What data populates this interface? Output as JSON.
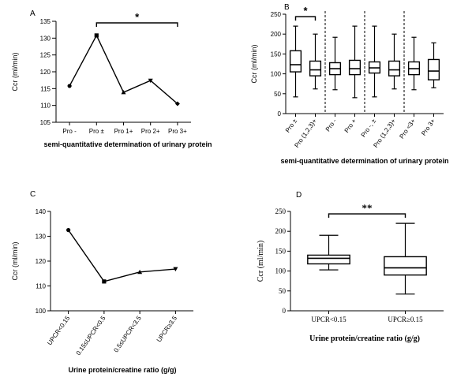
{
  "chart_data": [
    {
      "panel": "A",
      "type": "line",
      "ylabel": "Ccr (ml/min)",
      "xlabel": "semi-quantitative determination of urinary protein",
      "ylim": [
        105,
        135
      ],
      "yticks": [
        105,
        110,
        115,
        120,
        125,
        130,
        135
      ],
      "categories": [
        "Pro -",
        "Pro ±",
        "Pro 1+",
        "Pro 2+",
        "Pro 3+"
      ],
      "values": [
        115.8,
        130.8,
        113.9,
        117.4,
        110.5
      ],
      "markers": [
        "circle",
        "square",
        "triangle-up",
        "triangle-down",
        "diamond"
      ],
      "significance": [
        {
          "from": 1,
          "to": 4,
          "label": "*"
        }
      ]
    },
    {
      "panel": "B",
      "type": "boxplot",
      "ylabel": "Ccr (ml/min)",
      "xlabel": "semi-quantitative determination of urinary protein",
      "ylim": [
        0,
        250
      ],
      "yticks": [
        0,
        50,
        100,
        150,
        200,
        250
      ],
      "categories": [
        "Pro ±",
        "Pro (1,2,3)+",
        "Pro -",
        "Pro +",
        "Pro -, ±",
        "Pro (1,2,3)+",
        "Pro <3+",
        "Pro 3+"
      ],
      "boxes": [
        {
          "min": 42,
          "q1": 105,
          "median": 123,
          "q3": 158,
          "max": 220
        },
        {
          "min": 62,
          "q1": 95,
          "median": 110,
          "q3": 132,
          "max": 200
        },
        {
          "min": 60,
          "q1": 98,
          "median": 113,
          "q3": 128,
          "max": 192
        },
        {
          "min": 40,
          "q1": 98,
          "median": 113,
          "q3": 134,
          "max": 220
        },
        {
          "min": 42,
          "q1": 102,
          "median": 115,
          "q3": 130,
          "max": 220
        },
        {
          "min": 62,
          "q1": 95,
          "median": 110,
          "q3": 132,
          "max": 200
        },
        {
          "min": 60,
          "q1": 98,
          "median": 113,
          "q3": 130,
          "max": 192
        },
        {
          "min": 65,
          "q1": 85,
          "median": 107,
          "q3": 136,
          "max": 178
        }
      ],
      "dividers_after": [
        1,
        3,
        5
      ],
      "significance": [
        {
          "from": 0,
          "to": 1,
          "label": "*"
        }
      ]
    },
    {
      "panel": "C",
      "type": "line",
      "ylabel": "Ccr (ml/min)",
      "xlabel": "Urine protein/creatine ratio (g/g)",
      "ylim": [
        100,
        140
      ],
      "yticks": [
        100,
        110,
        120,
        130,
        140
      ],
      "categories": [
        "UPCR<0.15",
        "0.15≤UPCR<0.5",
        "0.5≤UPCR<3.5",
        "UPCR≥3.5"
      ],
      "values": [
        132.5,
        111.8,
        115.6,
        116.8
      ],
      "markers": [
        "circle",
        "square",
        "triangle-up",
        "triangle-down"
      ]
    },
    {
      "panel": "D",
      "type": "boxplot",
      "ylabel": "Ccr (ml/min)",
      "xlabel": "Urine protein/creatine ratio (g/g)",
      "ylim": [
        0,
        250
      ],
      "yticks": [
        0,
        50,
        100,
        150,
        200,
        250
      ],
      "categories": [
        "UPCR<0.15",
        "UPCR≥0.15"
      ],
      "boxes": [
        {
          "min": 103,
          "q1": 118,
          "median": 132,
          "q3": 140,
          "max": 190
        },
        {
          "min": 42,
          "q1": 90,
          "median": 108,
          "q3": 136,
          "max": 220
        }
      ],
      "significance": [
        {
          "from": 0,
          "to": 1,
          "label": "**"
        }
      ]
    }
  ]
}
